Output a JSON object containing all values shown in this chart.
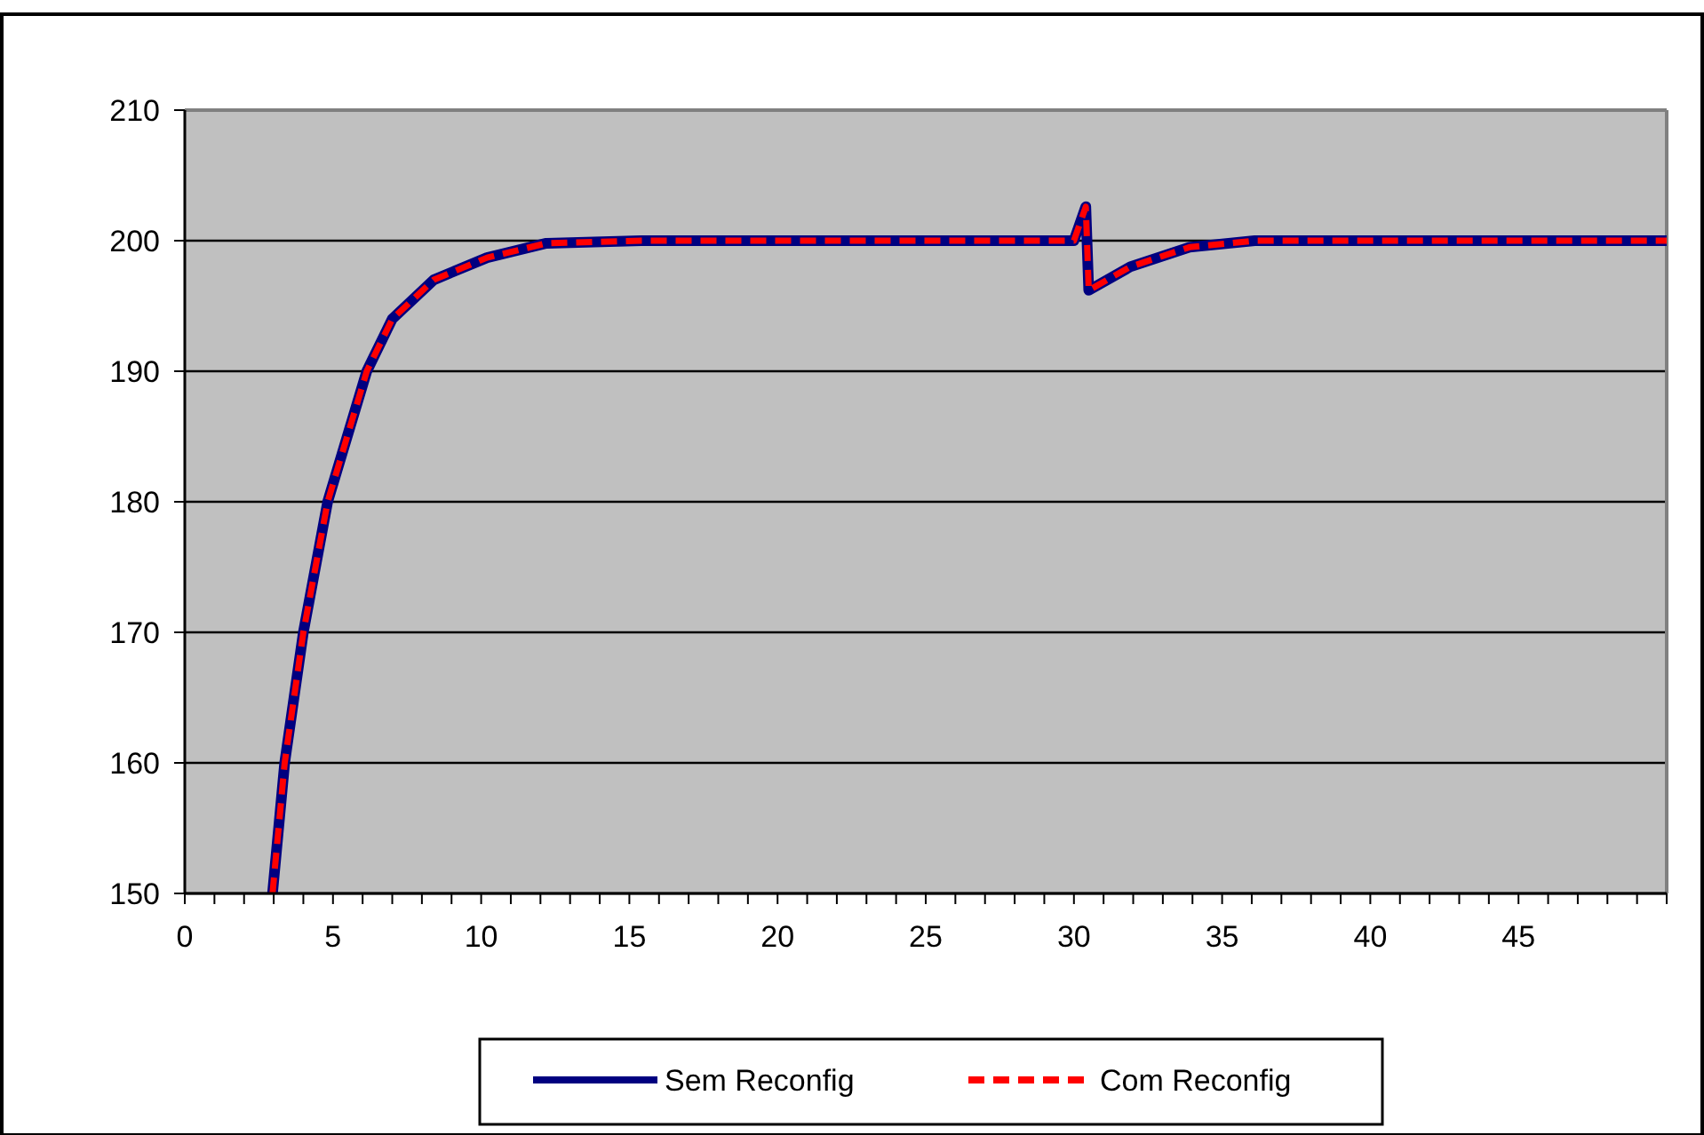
{
  "chart_data": {
    "type": "line",
    "x": [
      2.96,
      3.37,
      4.0,
      4.82,
      6.14,
      7.0,
      8.4,
      10.2,
      12.2,
      15.4,
      20,
      25,
      30,
      30.4,
      30.5,
      31.9,
      33.9,
      36.1,
      40,
      45,
      50
    ],
    "series": [
      {
        "name": "Sem Reconfig",
        "color": "#000080",
        "line_style": "solid",
        "values": [
          150,
          160,
          170,
          180,
          190,
          194,
          197,
          198.7,
          199.8,
          200,
          200,
          200,
          200,
          202.6,
          196.2,
          198,
          199.5,
          200,
          200,
          200,
          200
        ]
      },
      {
        "name": "Com Reconfig",
        "color": "#ff0000",
        "line_style": "dashed",
        "values": [
          150,
          160,
          170,
          180,
          190,
          194,
          197,
          198.7,
          199.8,
          200,
          200,
          200,
          200,
          202.6,
          196.2,
          198,
          199.5,
          200,
          200,
          200,
          200
        ]
      }
    ],
    "xlim": [
      0,
      50
    ],
    "xticks": [
      0,
      {
        "value": 1,
        "label": null
      },
      {
        "value": 2,
        "label": null
      },
      {
        "value": 3,
        "label": null
      },
      {
        "value": 4,
        "label": null
      },
      5,
      {
        "value": 6,
        "label": null
      },
      {
        "value": 7,
        "label": null
      },
      {
        "value": 8,
        "label": null
      },
      {
        "value": 9,
        "label": null
      },
      10,
      {
        "value": 11,
        "label": null
      },
      {
        "value": 12,
        "label": null
      },
      {
        "value": 13,
        "label": null
      },
      {
        "value": 14,
        "label": null
      },
      15,
      {
        "value": 16,
        "label": null
      },
      {
        "value": 17,
        "label": null
      },
      {
        "value": 18,
        "label": null
      },
      {
        "value": 19,
        "label": null
      },
      20,
      {
        "value": 21,
        "label": null
      },
      {
        "value": 22,
        "label": null
      },
      {
        "value": 23,
        "label": null
      },
      {
        "value": 24,
        "label": null
      },
      25,
      {
        "value": 26,
        "label": null
      },
      {
        "value": 27,
        "label": null
      },
      {
        "value": 28,
        "label": null
      },
      {
        "value": 29,
        "label": null
      },
      30,
      {
        "value": 31,
        "label": null
      },
      {
        "value": 32,
        "label": null
      },
      {
        "value": 33,
        "label": null
      },
      {
        "value": 34,
        "label": null
      },
      35,
      {
        "value": 36,
        "label": null
      },
      {
        "value": 37,
        "label": null
      },
      {
        "value": 38,
        "label": null
      },
      {
        "value": 39,
        "label": null
      },
      40,
      {
        "value": 41,
        "label": null
      },
      {
        "value": 42,
        "label": null
      },
      {
        "value": 43,
        "label": null
      },
      {
        "value": 44,
        "label": null
      },
      45,
      {
        "value": 46,
        "label": null
      },
      {
        "value": 47,
        "label": null
      },
      {
        "value": 48,
        "label": null
      },
      {
        "value": 49,
        "label": null
      },
      {
        "value": 50,
        "label": null
      }
    ],
    "ylim": [
      150,
      210
    ],
    "yticks": [
      150,
      160,
      170,
      180,
      190,
      200,
      210
    ],
    "grid": "y",
    "legend": "bottom",
    "marker": "none"
  }
}
